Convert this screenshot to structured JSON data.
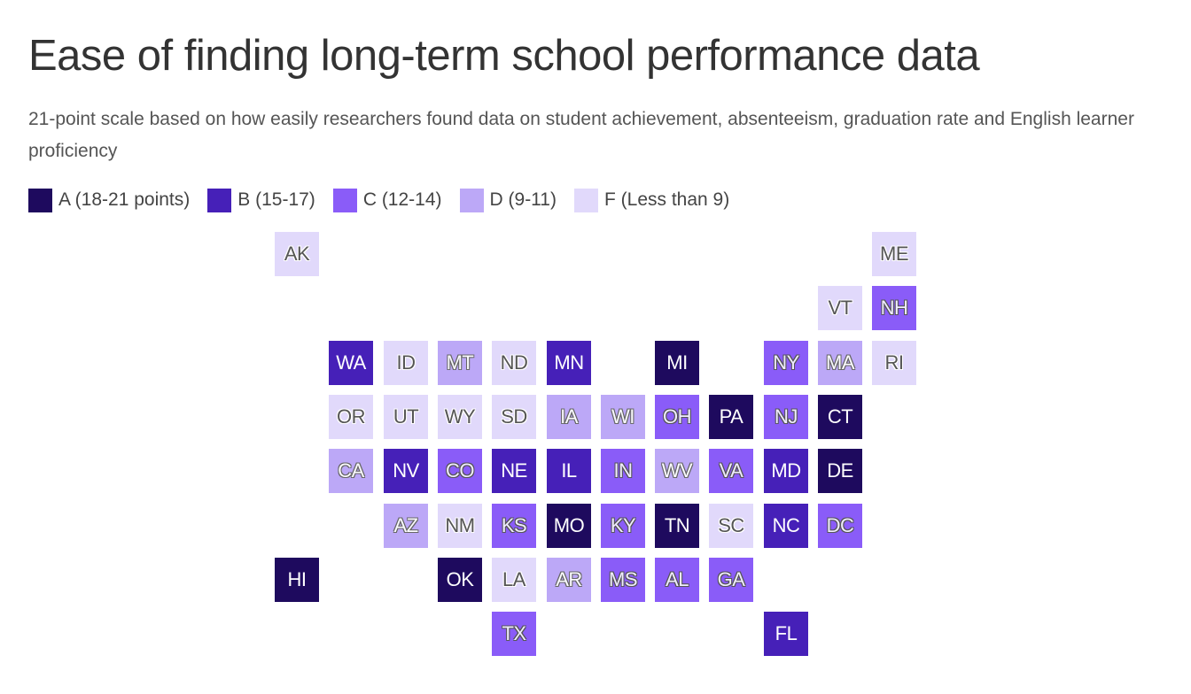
{
  "title": "Ease of finding long-term school performance data",
  "subtitle": "21-point scale based on how easily researchers found data on student achievement, absenteeism, graduation rate and English learner proficiency",
  "legend": [
    {
      "grade": "A",
      "label": "A (18-21 points)",
      "color": "#1e0a5e"
    },
    {
      "grade": "B",
      "label": "B (15-17)",
      "color": "#4620b8"
    },
    {
      "grade": "C",
      "label": "C (12-14)",
      "color": "#8a5cf8"
    },
    {
      "grade": "D",
      "label": "D (9-11)",
      "color": "#bca8f7"
    },
    {
      "grade": "F",
      "label": "F (Less than 9)",
      "color": "#e1d9fb"
    }
  ],
  "chart_data": {
    "type": "tile-map",
    "states": [
      {
        "abbr": "AK",
        "grade": "F"
      },
      {
        "abbr": "ME",
        "grade": "F"
      },
      {
        "abbr": "VT",
        "grade": "F"
      },
      {
        "abbr": "NH",
        "grade": "C"
      },
      {
        "abbr": "WA",
        "grade": "B"
      },
      {
        "abbr": "ID",
        "grade": "F"
      },
      {
        "abbr": "MT",
        "grade": "D"
      },
      {
        "abbr": "ND",
        "grade": "F"
      },
      {
        "abbr": "MN",
        "grade": "B"
      },
      {
        "abbr": "MI",
        "grade": "A"
      },
      {
        "abbr": "NY",
        "grade": "C"
      },
      {
        "abbr": "MA",
        "grade": "D"
      },
      {
        "abbr": "RI",
        "grade": "F"
      },
      {
        "abbr": "OR",
        "grade": "F"
      },
      {
        "abbr": "UT",
        "grade": "F"
      },
      {
        "abbr": "WY",
        "grade": "F"
      },
      {
        "abbr": "SD",
        "grade": "F"
      },
      {
        "abbr": "IA",
        "grade": "D"
      },
      {
        "abbr": "WI",
        "grade": "D"
      },
      {
        "abbr": "OH",
        "grade": "C"
      },
      {
        "abbr": "PA",
        "grade": "A"
      },
      {
        "abbr": "NJ",
        "grade": "C"
      },
      {
        "abbr": "CT",
        "grade": "A"
      },
      {
        "abbr": "CA",
        "grade": "D"
      },
      {
        "abbr": "NV",
        "grade": "B"
      },
      {
        "abbr": "CO",
        "grade": "C"
      },
      {
        "abbr": "NE",
        "grade": "B"
      },
      {
        "abbr": "IL",
        "grade": "B"
      },
      {
        "abbr": "IN",
        "grade": "C"
      },
      {
        "abbr": "WV",
        "grade": "D"
      },
      {
        "abbr": "VA",
        "grade": "C"
      },
      {
        "abbr": "MD",
        "grade": "B"
      },
      {
        "abbr": "DE",
        "grade": "A"
      },
      {
        "abbr": "AZ",
        "grade": "D"
      },
      {
        "abbr": "NM",
        "grade": "F"
      },
      {
        "abbr": "KS",
        "grade": "C"
      },
      {
        "abbr": "MO",
        "grade": "A"
      },
      {
        "abbr": "KY",
        "grade": "C"
      },
      {
        "abbr": "TN",
        "grade": "A"
      },
      {
        "abbr": "SC",
        "grade": "F"
      },
      {
        "abbr": "NC",
        "grade": "B"
      },
      {
        "abbr": "DC",
        "grade": "C"
      },
      {
        "abbr": "HI",
        "grade": "A"
      },
      {
        "abbr": "OK",
        "grade": "A"
      },
      {
        "abbr": "LA",
        "grade": "F"
      },
      {
        "abbr": "AR",
        "grade": "D"
      },
      {
        "abbr": "MS",
        "grade": "C"
      },
      {
        "abbr": "AL",
        "grade": "C"
      },
      {
        "abbr": "GA",
        "grade": "C"
      },
      {
        "abbr": "TX",
        "grade": "C"
      },
      {
        "abbr": "FL",
        "grade": "B"
      }
    ]
  }
}
